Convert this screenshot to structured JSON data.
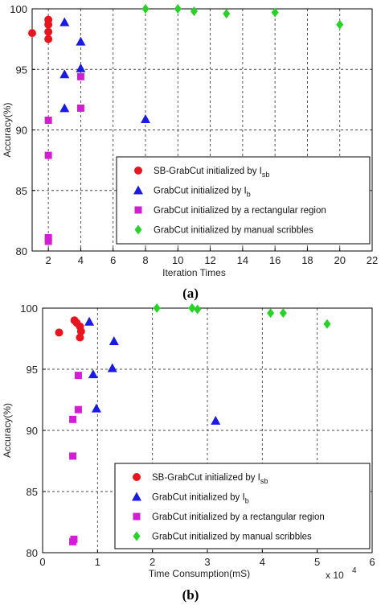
{
  "chart_data": [
    {
      "type": "scatter",
      "caption": "(a)",
      "xlabel": "Iteration Times",
      "ylabel": "Accuracy(%)",
      "xlim": [
        1,
        22
      ],
      "ylim": [
        80,
        100
      ],
      "xticks": [
        2,
        4,
        6,
        8,
        10,
        12,
        14,
        16,
        18,
        20,
        22
      ],
      "yticks": [
        80,
        85,
        90,
        95,
        100
      ],
      "grid": true,
      "legend_position": "bottom-right",
      "series": [
        {
          "name": "SB-GrabCut initialized by I",
          "name_sub": "sb",
          "marker": "circle",
          "color": "#e8141e",
          "points": [
            [
              1,
              98.0
            ],
            [
              2,
              99.1
            ],
            [
              2,
              98.7
            ],
            [
              2,
              98.1
            ],
            [
              2,
              97.5
            ]
          ]
        },
        {
          "name": "GrabCut initialized by I",
          "name_sub": "b",
          "marker": "triangle",
          "color": "#1a1ae6",
          "points": [
            [
              3,
              98.9
            ],
            [
              4,
              97.3
            ],
            [
              4,
              95.1
            ],
            [
              3,
              94.6
            ],
            [
              3,
              91.8
            ],
            [
              8,
              90.9
            ]
          ]
        },
        {
          "name": "GrabCut initialized by a rectangular region",
          "name_sub": "",
          "marker": "square",
          "color": "#d21ed2",
          "points": [
            [
              4,
              94.4
            ],
            [
              4,
              91.8
            ],
            [
              2,
              90.8
            ],
            [
              2,
              87.9
            ],
            [
              2,
              81.1
            ],
            [
              2,
              80.8
            ]
          ]
        },
        {
          "name": "GrabCut initialized by manual scribbles",
          "name_sub": "",
          "marker": "diamond",
          "color": "#28d228",
          "points": [
            [
              8,
              100.0
            ],
            [
              10,
              100.0
            ],
            [
              11,
              99.8
            ],
            [
              13,
              99.6
            ],
            [
              16,
              99.7
            ],
            [
              20,
              98.7
            ]
          ]
        }
      ]
    },
    {
      "type": "scatter",
      "caption": "(b)",
      "xlabel": "Time Consumption(mS)",
      "ylabel": "Accuracy(%)",
      "x_multiplier_label": "x 10",
      "x_multiplier_exp": "4",
      "xlim": [
        0,
        6
      ],
      "ylim": [
        80,
        100
      ],
      "xticks": [
        0,
        1,
        2,
        3,
        4,
        5,
        6
      ],
      "yticks": [
        80,
        85,
        90,
        95,
        100
      ],
      "grid": true,
      "legend_position": "bottom-right",
      "series": [
        {
          "name": "SB-GrabCut initialized by I",
          "name_sub": "sb",
          "marker": "circle",
          "color": "#e8141e",
          "points": [
            [
              0.3,
              98.0
            ],
            [
              0.58,
              99.0
            ],
            [
              0.62,
              98.8
            ],
            [
              0.68,
              98.5
            ],
            [
              0.7,
              98.1
            ],
            [
              0.68,
              97.6
            ]
          ]
        },
        {
          "name": "GrabCut initialized by I",
          "name_sub": "b",
          "marker": "triangle",
          "color": "#1a1ae6",
          "points": [
            [
              0.85,
              98.9
            ],
            [
              1.3,
              97.3
            ],
            [
              1.27,
              95.1
            ],
            [
              0.92,
              94.6
            ],
            [
              0.98,
              91.8
            ],
            [
              3.15,
              90.8
            ]
          ]
        },
        {
          "name": "GrabCut initialized by a rectangular region",
          "name_sub": "",
          "marker": "square",
          "color": "#d21ed2",
          "points": [
            [
              0.65,
              94.5
            ],
            [
              0.65,
              91.7
            ],
            [
              0.55,
              90.9
            ],
            [
              0.55,
              87.9
            ],
            [
              0.57,
              81.1
            ],
            [
              0.55,
              80.9
            ]
          ]
        },
        {
          "name": "GrabCut initialized by manual scribbles",
          "name_sub": "",
          "marker": "diamond",
          "color": "#28d228",
          "points": [
            [
              2.08,
              100.0
            ],
            [
              2.72,
              100.0
            ],
            [
              2.82,
              99.9
            ],
            [
              4.15,
              99.6
            ],
            [
              4.38,
              99.6
            ],
            [
              5.18,
              98.7
            ]
          ]
        }
      ]
    }
  ]
}
